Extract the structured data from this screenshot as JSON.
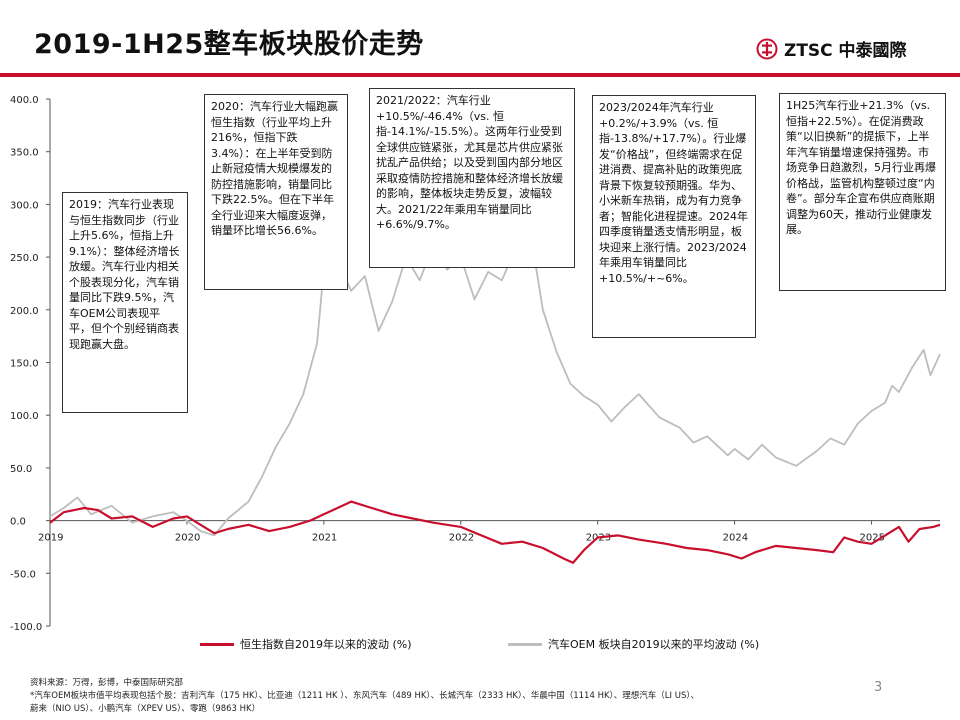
{
  "header": {
    "title": "2019-1H25整车板块股价走势",
    "logo_text": "ZTSC 中泰國際"
  },
  "colors": {
    "accent": "#c8102e",
    "series_hsi": "#c8102e",
    "series_oem": "#bdbdbd"
  },
  "annotations": [
    "2019：汽车行业表现与恒生指数同步（行业上升5.6%，恒指上升9.1%）：整体经济增长放缓。汽车行业内相关个股表现分化，汽车销量同比下跌9.5%，汽车OEM公司表现平平，但个个别经销商表现跑赢大盘。",
    "2020：汽车行业大幅跑赢恒生指数（行业平均上升216%，恒指下跌3.4%）：在上半年受到防止新冠疫情大规模爆发的防控措施影响，销量同比下跌22.5%。但在下半年全行业迎来大幅度返弹，销量环比增长56.6%。",
    "2021/2022：汽车行业+10.5%/-46.4%（vs. 恒指-14.1%/-15.5%）。这两年行业受到全球供应链紧张，尤其是芯片供应紧张扰乱产品供给；以及受到国内部分地区采取疫情防控措施和整体经济增长放缓的影响，整体板块走势反复，波幅较大。2021/22年乘用车销量同比+6.6%/9.7%。",
    "2023/2024年汽车行业+0.2%/+3.9%（vs. 恒指-13.8%/+17.7%）。行业爆发“价格战”，但终端需求在促进消费、提高补贴的政策兜底背景下恢复较预期强。华为、小米新车热销，成为有力竞争者；智能化进程提速。2024年四季度销量透支情形明显，板块迎来上涨行情。2023/2024年乘用车销量同比+10.5%/+~6%。",
    "1H25汽车行业+21.3%（vs. 恒指+22.5%）。在促消费政策“以旧换新”的提振下，上半年汽车销量增速保持强势。市场竞争日趋激烈，5月行业再爆价格战，监管机构整顿过度“内卷”。部分车企宣布供应商账期调整为60天，推动行业健康发展。"
  ],
  "legend": {
    "hsi": "恒生指数自2019年以来的波动 (%)",
    "oem": "汽车OEM 板块自2019以来的平均波动 (%)"
  },
  "source_lines": [
    "资料来源：万得，彭博，中泰国际研究部",
    "*汽车OEM板块市值平均表现包括个股：吉利汽车（175 HK）、比亚迪（1211 HK ）、东风汽车（489 HK）、长城汽车（2333 HK）、华晨中国（1114 HK）、理想汽车（LI US）、",
    "蔚来（NIO US）、小鹏汽车（XPEV US）、零跑（9863 HK）"
  ],
  "page_number": "3",
  "chart_data": {
    "type": "line",
    "ylim": [
      -100,
      400
    ],
    "yticks": [
      "400.0",
      "350.0",
      "300.0",
      "250.0",
      "200.0",
      "150.0",
      "100.0",
      "50.0",
      "0.0",
      "-50.0",
      "-100.0"
    ],
    "xticks": [
      "2019",
      "2020",
      "2021",
      "2022",
      "2023",
      "2024",
      "2025"
    ],
    "xlim": [
      2019.0,
      2025.5
    ],
    "grid": false,
    "legend_position": "bottom",
    "series": [
      {
        "name": "恒生指数自2019年以来的波动 (%)",
        "x": [
          2019.0,
          2019.1,
          2019.25,
          2019.35,
          2019.45,
          2019.6,
          2019.75,
          2019.9,
          2020.0,
          2020.1,
          2020.2,
          2020.3,
          2020.45,
          2020.6,
          2020.75,
          2020.9,
          2021.0,
          2021.1,
          2021.2,
          2021.35,
          2021.5,
          2021.65,
          2021.8,
          2022.0,
          2022.15,
          2022.3,
          2022.45,
          2022.6,
          2022.75,
          2022.82,
          2022.9,
          2023.0,
          2023.15,
          2023.3,
          2023.5,
          2023.65,
          2023.8,
          2023.95,
          2024.05,
          2024.15,
          2024.3,
          2024.45,
          2024.6,
          2024.72,
          2024.8,
          2024.9,
          2025.0,
          2025.1,
          2025.2,
          2025.27,
          2025.35,
          2025.45,
          2025.5
        ],
        "y": [
          -2,
          8,
          12,
          10,
          2,
          4,
          -6,
          2,
          4,
          -4,
          -12,
          -8,
          -4,
          -10,
          -6,
          0,
          6,
          12,
          18,
          12,
          6,
          2,
          -2,
          -6,
          -14,
          -22,
          -20,
          -26,
          -36,
          -40,
          -28,
          -16,
          -14,
          -18,
          -22,
          -26,
          -28,
          -32,
          -36,
          -30,
          -24,
          -26,
          -28,
          -30,
          -16,
          -20,
          -22,
          -14,
          -6,
          -20,
          -8,
          -6,
          -4
        ]
      },
      {
        "name": "汽车OEM 板块自2019以来的平均波动 (%)",
        "x": [
          2019.0,
          2019.1,
          2019.2,
          2019.3,
          2019.45,
          2019.6,
          2019.75,
          2019.9,
          2020.0,
          2020.1,
          2020.2,
          2020.3,
          2020.45,
          2020.55,
          2020.65,
          2020.75,
          2020.85,
          2020.95,
          2021.0,
          2021.05,
          2021.1,
          2021.2,
          2021.3,
          2021.4,
          2021.5,
          2021.6,
          2021.7,
          2021.8,
          2021.9,
          2022.0,
          2022.1,
          2022.2,
          2022.3,
          2022.4,
          2022.5,
          2022.6,
          2022.7,
          2022.8,
          2022.9,
          2023.0,
          2023.1,
          2023.2,
          2023.3,
          2023.45,
          2023.6,
          2023.7,
          2023.8,
          2023.95,
          2024.0,
          2024.1,
          2024.2,
          2024.3,
          2024.45,
          2024.6,
          2024.7,
          2024.8,
          2024.9,
          2025.0,
          2025.1,
          2025.15,
          2025.2,
          2025.3,
          2025.38,
          2025.43,
          2025.5
        ],
        "y": [
          4,
          12,
          22,
          6,
          14,
          -2,
          4,
          8,
          0,
          -10,
          -14,
          2,
          18,
          42,
          70,
          92,
          120,
          168,
          238,
          292,
          246,
          218,
          232,
          180,
          208,
          250,
          228,
          262,
          238,
          250,
          210,
          236,
          228,
          258,
          280,
          200,
          160,
          130,
          118,
          110,
          94,
          108,
          120,
          98,
          88,
          74,
          80,
          62,
          68,
          58,
          72,
          60,
          52,
          66,
          78,
          72,
          92,
          104,
          112,
          128,
          122,
          146,
          162,
          138,
          158
        ]
      }
    ]
  }
}
